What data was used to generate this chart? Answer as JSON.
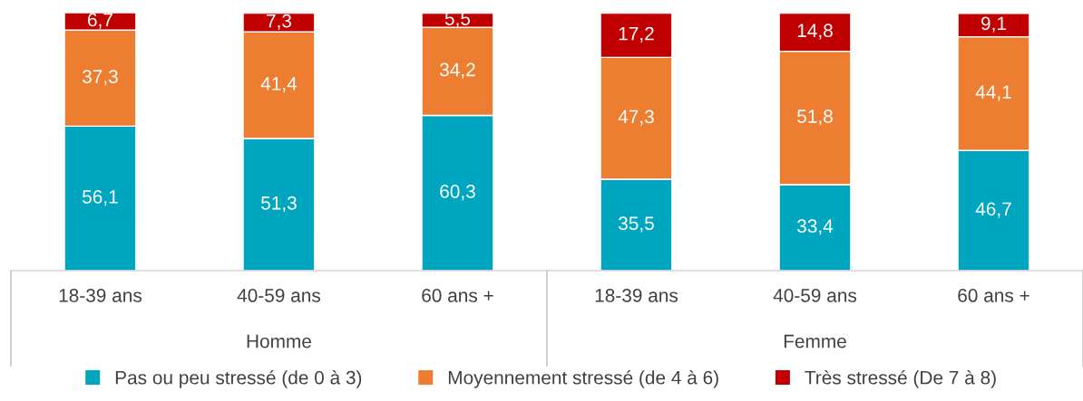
{
  "chart_data": {
    "type": "bar",
    "stacked": true,
    "categories": [
      "18-39 ans",
      "40-59 ans",
      "60 ans +",
      "18-39 ans",
      "40-59 ans",
      "60 ans +"
    ],
    "annotations": [
      "Homme",
      "Femme"
    ],
    "series": [
      {
        "name": "Pas ou peu stressé (de 0 à 3)",
        "color": "#00a5c0",
        "values": [
          56.1,
          51.3,
          60.3,
          35.5,
          33.4,
          46.7
        ],
        "value_labels": [
          "56,1",
          "51,3",
          "60,3",
          "35,5",
          "33,4",
          "46,7"
        ]
      },
      {
        "name": "Moyennement stressé (de 4 à 6)",
        "color": "#ed7d31",
        "values": [
          37.3,
          41.4,
          34.2,
          47.3,
          51.8,
          44.1
        ],
        "value_labels": [
          "37,3",
          "41,4",
          "34,2",
          "47,3",
          "51,8",
          "44,1"
        ]
      },
      {
        "name": "Très stressé (De 7 à 8)",
        "color": "#c00000",
        "values": [
          6.7,
          7.3,
          5.5,
          17.2,
          14.8,
          9.1
        ],
        "value_labels": [
          "6,7",
          "7,3",
          "5,5",
          "17,2",
          "14,8",
          "9,1"
        ]
      }
    ],
    "legend": "bottom",
    "grid": false
  }
}
